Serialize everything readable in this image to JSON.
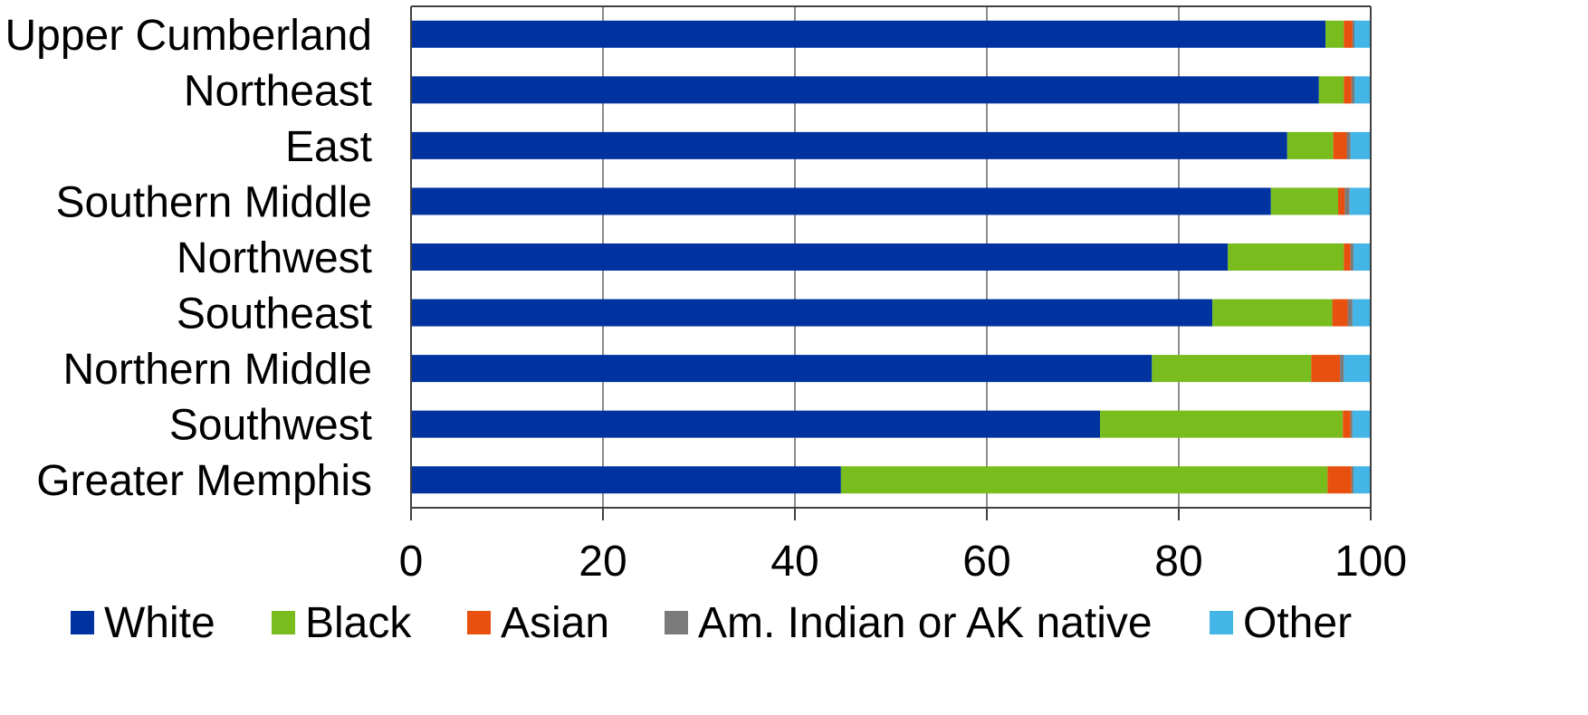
{
  "chart_data": {
    "type": "bar",
    "orientation": "horizontal",
    "stacked": true,
    "title": "",
    "xlabel": "",
    "ylabel": "",
    "xlim": [
      0,
      100
    ],
    "xticks": [
      0,
      20,
      40,
      60,
      80,
      100
    ],
    "grid": "vertical",
    "legend_position": "bottom",
    "categories": [
      "Upper Cumberland",
      "Northeast",
      "East",
      "Southern Middle",
      "Northwest",
      "Southeast",
      "Northern Middle",
      "Southwest",
      "Greater Memphis"
    ],
    "series": [
      {
        "name": "White",
        "color": "#0033a0",
        "values": [
          95.3,
          94.6,
          91.3,
          89.6,
          85.1,
          83.5,
          77.2,
          71.8,
          44.8
        ]
      },
      {
        "name": "Black",
        "color": "#78bc1e",
        "values": [
          1.9,
          2.6,
          4.8,
          7.0,
          12.1,
          12.5,
          16.6,
          25.3,
          50.7
        ]
      },
      {
        "name": "Asian",
        "color": "#e8500f",
        "values": [
          0.9,
          0.8,
          1.4,
          0.7,
          0.7,
          1.6,
          3.0,
          0.8,
          2.5
        ]
      },
      {
        "name": "Am. Indian or AK native",
        "color": "#7a7a7a",
        "values": [
          0.2,
          0.3,
          0.4,
          0.5,
          0.3,
          0.5,
          0.4,
          0.2,
          0.2
        ]
      },
      {
        "name": "Other",
        "color": "#43b5e6",
        "values": [
          1.7,
          1.7,
          2.1,
          2.2,
          1.8,
          1.9,
          2.8,
          1.9,
          1.8
        ]
      }
    ]
  }
}
